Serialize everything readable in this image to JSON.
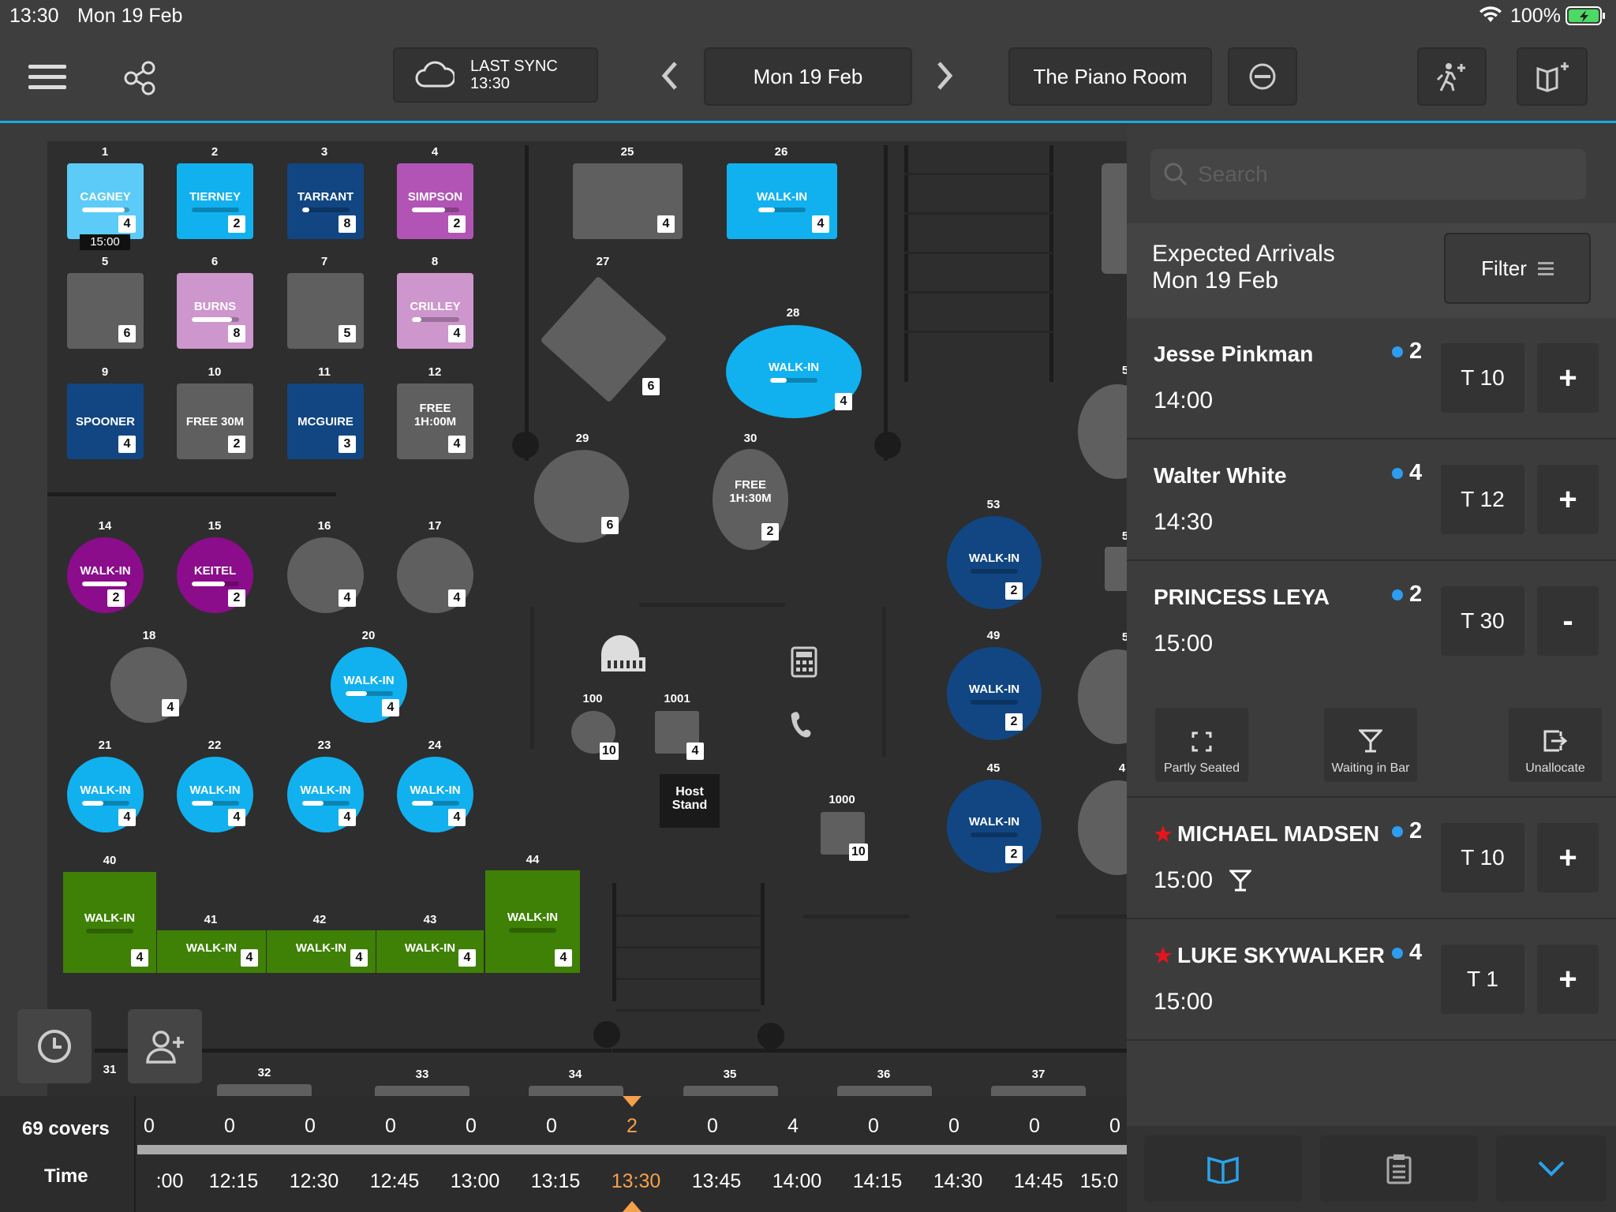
{
  "status": {
    "time": "13:30",
    "date": "Mon 19 Feb",
    "battery": "100%"
  },
  "header": {
    "sync_title": "LAST SYNC",
    "sync_time": "13:30",
    "date": "Mon 19 Feb",
    "room": "The Piano Room"
  },
  "tables": {
    "t1": {
      "num": "1",
      "name": "CAGNEY",
      "covers": "4",
      "badge": "15:00"
    },
    "t2": {
      "num": "2",
      "name": "TIERNEY",
      "covers": "2"
    },
    "t3": {
      "num": "3",
      "name": "TARRANT",
      "covers": "8"
    },
    "t4": {
      "num": "4",
      "name": "SIMPSON",
      "covers": "2"
    },
    "t5": {
      "num": "5",
      "covers": "6"
    },
    "t6": {
      "num": "6",
      "name": "BURNS",
      "covers": "8"
    },
    "t7": {
      "num": "7",
      "covers": "5"
    },
    "t8": {
      "num": "8",
      "name": "CRILLEY",
      "covers": "4"
    },
    "t9": {
      "num": "9",
      "name": "SPOONER",
      "covers": "4"
    },
    "t10": {
      "num": "10",
      "name": "FREE 30M",
      "covers": "2"
    },
    "t11": {
      "num": "11",
      "name": "MCGUIRE",
      "covers": "3"
    },
    "t12": {
      "num": "12",
      "name": "FREE 1H:00M",
      "covers": "4"
    },
    "t14": {
      "num": "14",
      "name": "WALK-IN",
      "covers": "2"
    },
    "t15": {
      "num": "15",
      "name": "KEITEL",
      "covers": "2"
    },
    "t16": {
      "num": "16",
      "covers": "4"
    },
    "t17": {
      "num": "17",
      "covers": "4"
    },
    "t18": {
      "num": "18",
      "covers": "4"
    },
    "t20": {
      "num": "20",
      "name": "WALK-IN",
      "covers": "4"
    },
    "t21": {
      "num": "21",
      "name": "WALK-IN",
      "covers": "4"
    },
    "t22": {
      "num": "22",
      "name": "WALK-IN",
      "covers": "4"
    },
    "t23": {
      "num": "23",
      "name": "WALK-IN",
      "covers": "4"
    },
    "t24": {
      "num": "24",
      "name": "WALK-IN",
      "covers": "4"
    },
    "t25": {
      "num": "25",
      "covers": "4"
    },
    "t26": {
      "num": "26",
      "name": "WALK-IN",
      "covers": "4"
    },
    "t27": {
      "num": "27",
      "covers": "6"
    },
    "t28": {
      "num": "28",
      "name": "WALK-IN",
      "covers": "4"
    },
    "t29": {
      "num": "29",
      "covers": "6"
    },
    "t30": {
      "num": "30",
      "name": "FREE 1H:30M",
      "covers": "2"
    },
    "t40": {
      "num": "40",
      "name": "WALK-IN",
      "covers": "4"
    },
    "t41": {
      "num": "41",
      "name": "WALK-IN",
      "covers": "4"
    },
    "t42": {
      "num": "42",
      "name": "WALK-IN",
      "covers": "4"
    },
    "t43": {
      "num": "43",
      "name": "WALK-IN",
      "covers": "4"
    },
    "t44": {
      "num": "44",
      "name": "WALK-IN",
      "covers": "4"
    },
    "t45": {
      "num": "45",
      "name": "WALK-IN",
      "covers": "2"
    },
    "t49": {
      "num": "49",
      "name": "WALK-IN",
      "covers": "2"
    },
    "t53": {
      "num": "53",
      "name": "WALK-IN",
      "covers": "2"
    },
    "t100": {
      "num": "100",
      "covers": "10"
    },
    "t1001": {
      "num": "1001",
      "covers": "4"
    },
    "t1000": {
      "num": "1000",
      "covers": "10"
    },
    "host": "Host Stand",
    "bottom_nums": [
      "31",
      "32",
      "33",
      "34",
      "35",
      "36",
      "37"
    ],
    "edge_nums": [
      "5",
      "5",
      "5",
      "4"
    ]
  },
  "timeline": {
    "covers_label": "69 covers",
    "time_label": "Time",
    "counts": [
      "0",
      "0",
      "0",
      "0",
      "0",
      "0",
      "2",
      "0",
      "4",
      "0",
      "0",
      "0",
      "0"
    ],
    "times": [
      ":00",
      "12:15",
      "12:30",
      "12:45",
      "13:00",
      "13:15",
      "13:30",
      "13:45",
      "14:00",
      "14:15",
      "14:30",
      "14:45",
      "15:0"
    ]
  },
  "panel": {
    "search_placeholder": "Search",
    "title_line1": "Expected Arrivals",
    "title_line2": "Mon 19 Feb",
    "filter": "Filter",
    "arrivals": [
      {
        "name": "Jesse Pinkman",
        "party": "2",
        "time": "14:00",
        "table": "T 10",
        "action": "+"
      },
      {
        "name": "Walter White",
        "party": "4",
        "time": "14:30",
        "table": "T 12",
        "action": "+"
      },
      {
        "name": "PRINCESS LEYA",
        "party": "2",
        "time": "15:00",
        "table": "T 30",
        "action": "-"
      },
      {
        "name": "MICHAEL MADSEN",
        "party": "2",
        "time": "15:00",
        "table": "T 10",
        "action": "+"
      },
      {
        "name": "LUKE SKYWALKER",
        "party": "4",
        "time": "15:00",
        "table": "T 1",
        "action": "+"
      }
    ],
    "actions": {
      "partly": "Partly Seated",
      "bar": "Waiting in Bar",
      "unallocate": "Unallocate"
    }
  },
  "colors": {
    "accent": "#19a9e8",
    "highlight": "#f5a04a",
    "star": "#e8141c"
  }
}
